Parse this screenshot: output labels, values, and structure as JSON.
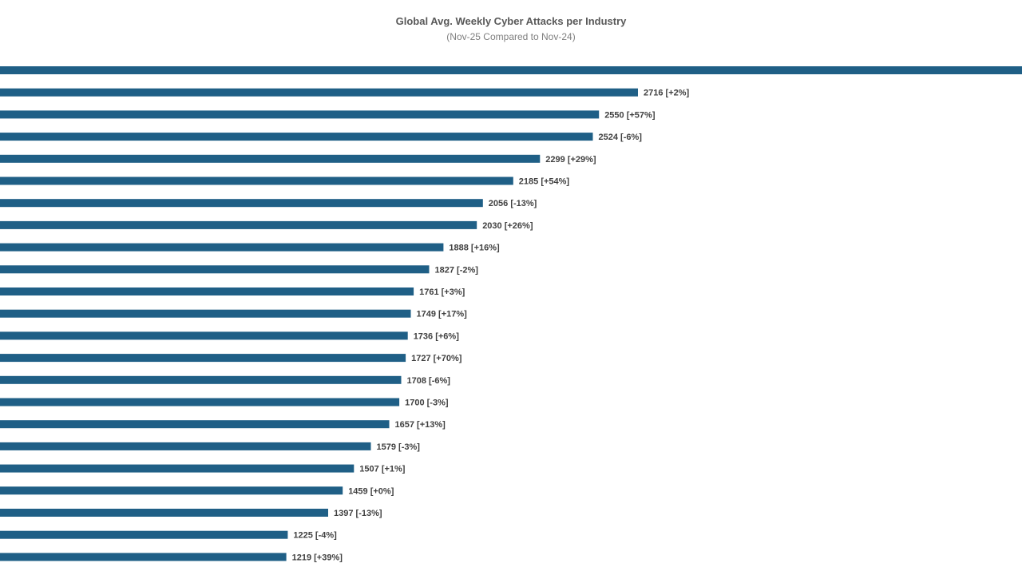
{
  "chart_data": {
    "type": "bar",
    "orientation": "horizontal",
    "title": "Global Avg. Weekly Cyber Attacks per Industry",
    "subtitle": "(Nov-25 Compared to Nov-24)",
    "bar_color": "#1f5f86",
    "bars": [
      {
        "value": null,
        "label": ""
      },
      {
        "value": 2716,
        "label": "2716 [+2%]"
      },
      {
        "value": 2550,
        "label": "2550 [+57%]"
      },
      {
        "value": 2524,
        "label": "2524 [-6%]"
      },
      {
        "value": 2299,
        "label": "2299 [+29%]"
      },
      {
        "value": 2185,
        "label": "2185 [+54%]"
      },
      {
        "value": 2056,
        "label": "2056 [-13%]"
      },
      {
        "value": 2030,
        "label": "2030 [+26%]"
      },
      {
        "value": 1888,
        "label": "1888 [+16%]"
      },
      {
        "value": 1827,
        "label": "1827 [-2%]"
      },
      {
        "value": 1761,
        "label": "1761 [+3%]"
      },
      {
        "value": 1749,
        "label": "1749 [+17%]"
      },
      {
        "value": 1736,
        "label": "1736 [+6%]"
      },
      {
        "value": 1727,
        "label": "1727 [+70%]"
      },
      {
        "value": 1708,
        "label": "1708 [-6%]"
      },
      {
        "value": 1700,
        "label": "1700 [-3%]"
      },
      {
        "value": 1657,
        "label": "1657 [+13%]"
      },
      {
        "value": 1579,
        "label": "1579 [-3%]"
      },
      {
        "value": 1507,
        "label": "1507 [+1%]"
      },
      {
        "value": 1459,
        "label": "1459 [+0%]"
      },
      {
        "value": 1397,
        "label": "1397 [-13%]"
      },
      {
        "value": 1225,
        "label": "1225 [-4%]"
      },
      {
        "value": 1219,
        "label": "1219 [+39%]"
      }
    ],
    "grid": false,
    "legend": "none"
  }
}
